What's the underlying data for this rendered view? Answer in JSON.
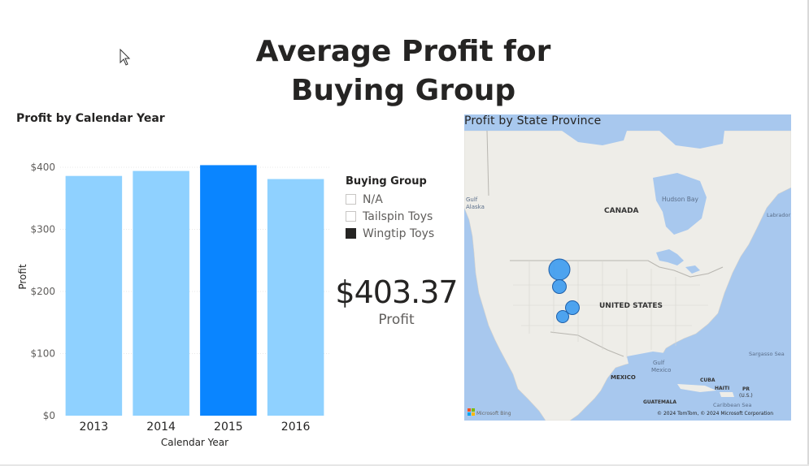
{
  "report": {
    "title_line1": "Average Profit for",
    "title_line2": "Buying Group"
  },
  "bar_visual": {
    "title": "Profit by Calendar Year"
  },
  "chart_data": {
    "type": "bar",
    "categories": [
      "2013",
      "2014",
      "2015",
      "2016"
    ],
    "values": [
      386,
      394,
      403.37,
      381
    ],
    "highlighted_category": "2015",
    "colors": {
      "default": "#8fd1ff",
      "highlight": "#0a85ff"
    },
    "xlabel": "Calendar Year",
    "ylabel": "Profit",
    "ylim": [
      0,
      400
    ],
    "yticks": [
      "$0",
      "$100",
      "$200",
      "$300",
      "$400"
    ],
    "ytick_values": [
      0,
      100,
      200,
      300,
      400
    ],
    "grid": true,
    "legend": "right"
  },
  "legend": {
    "title": "Buying Group",
    "items": [
      {
        "label": "N/A",
        "checked": false
      },
      {
        "label": "Tailspin Toys",
        "checked": false
      },
      {
        "label": "Wingtip Toys",
        "checked": true
      }
    ]
  },
  "kpi": {
    "value": "$403.37",
    "label": "Profit"
  },
  "map_visual": {
    "title": "Profit by State Province",
    "labels": {
      "canada": "CANADA",
      "united_states": "UNITED STATES",
      "mexico": "MEXICO",
      "hudson_bay": "Hudson Bay",
      "gulf_alaska_1": "Gulf",
      "gulf_alaska_2": "Alaska",
      "labrador": "Labrador",
      "sargasso": "Sargasso Sea",
      "gulf_mexico_1": "Gulf",
      "gulf_mexico_2": "Mexico",
      "cuba": "CUBA",
      "haiti": "HAITI",
      "pr": "PR",
      "us": "(U.S.)",
      "caribbean": "Caribbean Sea",
      "guatemala": "GUATEMALA",
      "bing": "Microsoft Bing",
      "copyright": "© 2024 TomTom, © 2024 Microsoft Corporation"
    },
    "bubble_color": "#3b9af0"
  }
}
